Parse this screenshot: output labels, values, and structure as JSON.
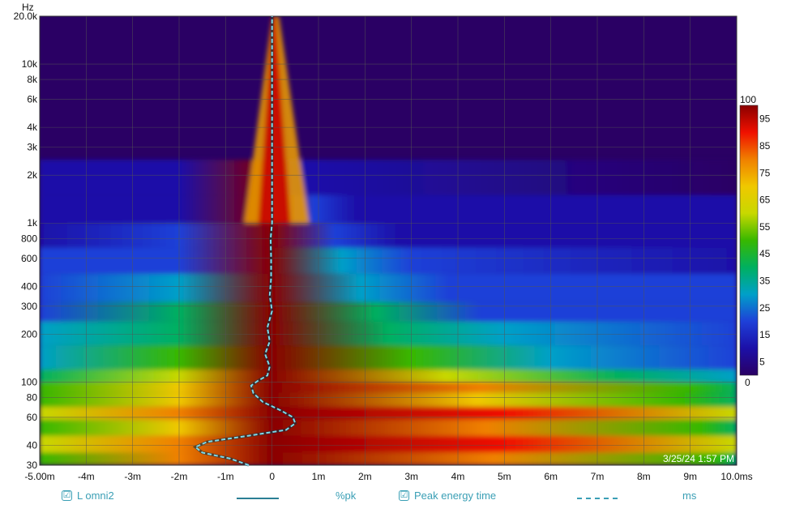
{
  "chart_data": {
    "type": "heatmap",
    "title": "",
    "xlabel": "",
    "ylabel": "",
    "x_unit": "ms",
    "y_unit": "Hz",
    "xlim": [
      -5.0,
      10.0
    ],
    "ylim": [
      30,
      20000
    ],
    "y_scale": "log",
    "grid": true,
    "x_ticks": [
      {
        "v": -5,
        "label": "-5.00m"
      },
      {
        "v": -4,
        "label": "-4m"
      },
      {
        "v": -3,
        "label": "-3m"
      },
      {
        "v": -2,
        "label": "-2m"
      },
      {
        "v": -1,
        "label": "-1m"
      },
      {
        "v": 0,
        "label": "0"
      },
      {
        "v": 1,
        "label": "1m"
      },
      {
        "v": 2,
        "label": "2m"
      },
      {
        "v": 3,
        "label": "3m"
      },
      {
        "v": 4,
        "label": "4m"
      },
      {
        "v": 5,
        "label": "5m"
      },
      {
        "v": 6,
        "label": "6m"
      },
      {
        "v": 7,
        "label": "7m"
      },
      {
        "v": 8,
        "label": "8m"
      },
      {
        "v": 9,
        "label": "9m"
      },
      {
        "v": 10,
        "label": "10.0ms"
      }
    ],
    "y_ticks": [
      {
        "v": 20000,
        "label": "20.0k"
      },
      {
        "v": 10000,
        "label": "10k"
      },
      {
        "v": 8000,
        "label": "8k"
      },
      {
        "v": 6000,
        "label": "6k"
      },
      {
        "v": 4000,
        "label": "4k"
      },
      {
        "v": 3000,
        "label": "3k"
      },
      {
        "v": 2000,
        "label": "2k"
      },
      {
        "v": 1000,
        "label": "1k"
      },
      {
        "v": 800,
        "label": "800"
      },
      {
        "v": 600,
        "label": "600"
      },
      {
        "v": 400,
        "label": "400"
      },
      {
        "v": 300,
        "label": "300"
      },
      {
        "v": 200,
        "label": "200"
      },
      {
        "v": 100,
        "label": "100"
      },
      {
        "v": 80,
        "label": "80"
      },
      {
        "v": 60,
        "label": "60"
      },
      {
        "v": 40,
        "label": "40"
      },
      {
        "v": 30,
        "label": "30"
      }
    ],
    "y_axis_unit_label": "Hz",
    "colorbar": {
      "range": [
        0,
        100
      ],
      "top_label": "100",
      "bottom_label": "0",
      "tick_values": [
        95,
        85,
        75,
        65,
        55,
        45,
        35,
        25,
        15,
        5
      ],
      "unit": "%pk",
      "colors": [
        "#2a0064",
        "#1c10a8",
        "#1e40d8",
        "#00a0c8",
        "#00b060",
        "#38b800",
        "#c8d800",
        "#f0c800",
        "#f08000",
        "#f01000",
        "#8a0000"
      ]
    },
    "series": [
      {
        "name": "L omni2",
        "value_unit": "%pk",
        "description_values": "energy heatmap"
      },
      {
        "name": "Peak energy time",
        "value_unit": "ms",
        "style": "dashed",
        "color": "#7fd8e8",
        "points": [
          {
            "f": 30,
            "t": -0.5
          },
          {
            "f": 33,
            "t": -0.9
          },
          {
            "f": 36,
            "t": -1.5
          },
          {
            "f": 39,
            "t": -1.65
          },
          {
            "f": 42,
            "t": -1.4
          },
          {
            "f": 46,
            "t": -0.5
          },
          {
            "f": 50,
            "t": 0.3
          },
          {
            "f": 55,
            "t": 0.5
          },
          {
            "f": 60,
            "t": 0.45
          },
          {
            "f": 66,
            "t": 0.2
          },
          {
            "f": 75,
            "t": -0.2
          },
          {
            "f": 85,
            "t": -0.4
          },
          {
            "f": 95,
            "t": -0.45
          },
          {
            "f": 102,
            "t": -0.3
          },
          {
            "f": 110,
            "t": -0.1
          },
          {
            "f": 125,
            "t": -0.05
          },
          {
            "f": 150,
            "t": -0.15
          },
          {
            "f": 180,
            "t": -0.05
          },
          {
            "f": 220,
            "t": -0.1
          },
          {
            "f": 280,
            "t": 0.0
          },
          {
            "f": 350,
            "t": -0.05
          },
          {
            "f": 450,
            "t": -0.02
          },
          {
            "f": 600,
            "t": -0.02
          },
          {
            "f": 800,
            "t": -0.03
          },
          {
            "f": 1000,
            "t": 0.0
          },
          {
            "f": 2000,
            "t": 0.0
          },
          {
            "f": 5000,
            "t": 0.0
          },
          {
            "f": 20000,
            "t": 0.0
          }
        ]
      }
    ],
    "timestamp": "3/25/24 1:57 PM"
  },
  "legend": {
    "item1_check": "☑",
    "item1_label": "L omni2",
    "item1_unit": "%pk",
    "item2_check": "☑",
    "item2_label": "Peak energy time",
    "item2_unit": "ms"
  }
}
